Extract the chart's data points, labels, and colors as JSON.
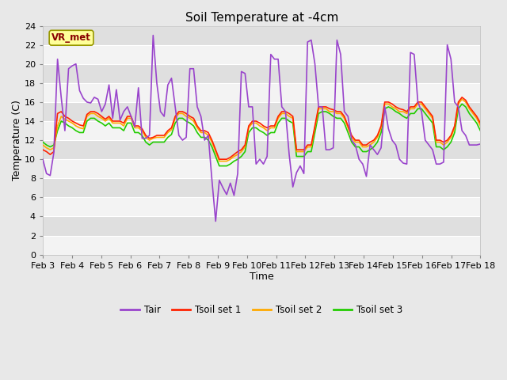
{
  "title": "Soil Temperature at -4cm",
  "xlabel": "Time",
  "ylabel": "Temperature (C)",
  "ylim": [
    0,
    24
  ],
  "yticks": [
    0,
    2,
    4,
    6,
    8,
    10,
    12,
    14,
    16,
    18,
    20,
    22,
    24
  ],
  "xlabels": [
    "Feb 3",
    "Feb 4",
    "Feb 5",
    "Feb 6",
    "Feb 7",
    "Feb 8",
    "Feb 9",
    "Feb 10",
    "Feb 11",
    "Feb 12",
    "Feb 13",
    "Feb 14",
    "Feb 15",
    "Feb 16",
    "Feb 17",
    "Feb 18"
  ],
  "fig_bg_color": "#e8e8e8",
  "plot_bg_color": "#e8e8e8",
  "grid_color": "#ffffff",
  "annotation_text": "VR_met",
  "annotation_bg": "#ffff99",
  "annotation_border": "#999900",
  "annotation_text_color": "#880000",
  "tair_color": "#9944cc",
  "tsoil1_color": "#ff2200",
  "tsoil2_color": "#ffaa00",
  "tsoil3_color": "#22cc00",
  "line_width": 1.2,
  "tair": [
    10.0,
    8.5,
    8.3,
    10.7,
    20.5,
    16.5,
    13.0,
    19.5,
    19.8,
    20.0,
    17.2,
    16.4,
    16.0,
    15.9,
    16.5,
    16.3,
    15.0,
    15.8,
    17.8,
    14.3,
    17.3,
    14.1,
    15.0,
    15.5,
    14.5,
    13.4,
    17.5,
    12.2,
    12.2,
    12.5,
    23.0,
    18.0,
    15.0,
    14.5,
    17.8,
    18.5,
    15.5,
    12.5,
    12.0,
    12.3,
    19.5,
    19.5,
    15.5,
    14.5,
    12.0,
    12.5,
    7.8,
    3.5,
    7.8,
    7.0,
    6.3,
    7.5,
    6.2,
    8.5,
    19.2,
    19.0,
    15.5,
    15.5,
    9.5,
    10.0,
    9.5,
    10.3,
    21.0,
    20.5,
    20.5,
    15.5,
    15.0,
    10.5,
    7.1,
    8.6,
    9.3,
    8.5,
    22.3,
    22.5,
    20.0,
    15.5,
    15.5,
    11.0,
    11.0,
    11.2,
    22.5,
    21.0,
    15.0,
    14.5,
    12.0,
    11.5,
    10.0,
    9.5,
    8.2,
    11.5,
    11.0,
    10.5,
    11.2,
    15.5,
    13.2,
    12.0,
    11.5,
    10.0,
    9.6,
    9.5,
    21.2,
    21.0,
    16.0,
    15.0,
    12.0,
    11.5,
    11.0,
    9.5,
    9.5,
    9.7,
    22.0,
    20.5,
    16.0,
    15.5,
    13.0,
    12.5,
    11.5,
    11.5,
    11.5,
    11.6
  ],
  "tsoil1": [
    11.0,
    10.8,
    10.5,
    10.8,
    14.8,
    15.0,
    14.5,
    14.3,
    14.0,
    13.8,
    13.6,
    13.5,
    14.7,
    15.0,
    15.0,
    14.8,
    14.5,
    14.2,
    14.5,
    14.0,
    14.0,
    14.0,
    13.8,
    14.5,
    14.5,
    13.5,
    13.5,
    13.2,
    12.5,
    12.2,
    12.3,
    12.5,
    12.5,
    12.5,
    13.0,
    13.3,
    14.5,
    15.0,
    15.0,
    14.8,
    14.5,
    14.3,
    13.5,
    13.0,
    13.0,
    12.8,
    12.0,
    11.0,
    10.0,
    10.0,
    10.0,
    10.2,
    10.5,
    10.8,
    11.0,
    11.5,
    13.5,
    14.0,
    14.0,
    13.8,
    13.5,
    13.3,
    13.5,
    13.5,
    14.5,
    15.0,
    15.0,
    14.8,
    14.5,
    11.0,
    11.0,
    11.0,
    11.5,
    11.5,
    13.5,
    15.5,
    15.5,
    15.5,
    15.3,
    15.2,
    15.0,
    15.0,
    14.5,
    13.5,
    12.5,
    12.0,
    12.0,
    11.5,
    11.5,
    11.8,
    12.0,
    12.5,
    13.5,
    16.0,
    16.0,
    15.8,
    15.5,
    15.3,
    15.2,
    15.0,
    15.5,
    15.5,
    16.0,
    16.0,
    15.5,
    15.0,
    14.5,
    12.0,
    12.0,
    11.8,
    12.0,
    12.5,
    13.5,
    16.0,
    16.5,
    16.2,
    15.5,
    15.0,
    14.5,
    13.8
  ],
  "tsoil2": [
    11.5,
    11.2,
    11.0,
    11.2,
    13.5,
    14.5,
    14.2,
    14.0,
    13.8,
    13.5,
    13.3,
    13.2,
    14.5,
    14.8,
    14.8,
    14.5,
    14.3,
    14.0,
    14.3,
    13.8,
    13.8,
    13.8,
    13.5,
    14.3,
    14.3,
    13.3,
    13.3,
    13.0,
    12.3,
    12.0,
    12.2,
    12.3,
    12.3,
    12.3,
    12.8,
    13.1,
    14.3,
    14.8,
    14.8,
    14.5,
    14.3,
    14.0,
    13.3,
    12.8,
    12.8,
    12.5,
    11.8,
    10.8,
    9.8,
    9.8,
    9.8,
    10.0,
    10.3,
    10.5,
    10.8,
    11.3,
    13.3,
    13.8,
    13.8,
    13.5,
    13.3,
    13.0,
    13.3,
    13.3,
    14.3,
    14.8,
    14.8,
    14.5,
    14.3,
    10.8,
    10.8,
    10.8,
    11.3,
    11.3,
    13.3,
    15.3,
    15.3,
    15.3,
    15.0,
    15.0,
    14.8,
    14.8,
    14.3,
    13.3,
    12.3,
    11.8,
    11.8,
    11.3,
    11.3,
    11.5,
    11.8,
    12.3,
    13.3,
    15.8,
    15.8,
    15.5,
    15.3,
    15.0,
    15.0,
    14.8,
    15.3,
    15.3,
    15.8,
    15.8,
    15.3,
    14.8,
    14.3,
    11.8,
    11.8,
    11.5,
    11.8,
    12.3,
    13.3,
    15.8,
    16.3,
    16.0,
    15.3,
    14.8,
    14.3,
    13.5
  ],
  "tsoil3": [
    11.8,
    11.5,
    11.3,
    11.5,
    13.0,
    14.0,
    13.8,
    13.5,
    13.3,
    13.0,
    12.8,
    12.8,
    14.0,
    14.3,
    14.3,
    14.0,
    13.8,
    13.5,
    13.8,
    13.3,
    13.3,
    13.3,
    13.0,
    13.8,
    13.8,
    12.8,
    12.8,
    12.5,
    11.8,
    11.5,
    11.8,
    11.8,
    11.8,
    11.8,
    12.3,
    12.6,
    13.8,
    14.3,
    14.3,
    14.0,
    13.8,
    13.5,
    12.8,
    12.3,
    12.3,
    12.0,
    11.3,
    10.3,
    9.3,
    9.3,
    9.3,
    9.5,
    9.8,
    10.0,
    10.3,
    10.8,
    12.8,
    13.3,
    13.3,
    13.0,
    12.8,
    12.5,
    12.8,
    12.8,
    13.8,
    14.3,
    14.3,
    14.0,
    13.8,
    10.3,
    10.3,
    10.3,
    10.8,
    10.8,
    12.8,
    14.8,
    15.0,
    15.0,
    14.8,
    14.5,
    14.3,
    14.3,
    13.8,
    12.8,
    11.8,
    11.3,
    11.3,
    10.8,
    10.8,
    11.0,
    11.3,
    11.8,
    12.8,
    15.3,
    15.5,
    15.3,
    15.0,
    14.8,
    14.5,
    14.3,
    14.8,
    14.8,
    15.3,
    15.3,
    14.8,
    14.3,
    13.8,
    11.3,
    11.3,
    11.0,
    11.3,
    11.8,
    12.8,
    15.3,
    15.8,
    15.5,
    14.8,
    14.3,
    13.8,
    13.0
  ]
}
